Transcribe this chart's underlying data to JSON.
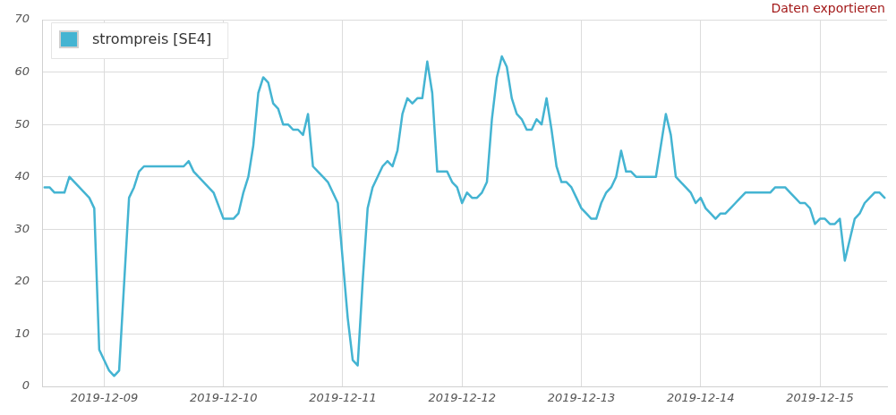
{
  "chart_data": {
    "type": "line",
    "legend": "top left",
    "grid": true,
    "annotations": [
      "Daten exportieren"
    ],
    "xlim": [
      "2019-12-08T11:30",
      "2019-12-15T13:30"
    ],
    "xticks": [
      "2019-12-09",
      "2019-12-10",
      "2019-12-11",
      "2019-12-12",
      "2019-12-13",
      "2019-12-14",
      "2019-12-15"
    ],
    "ylim": [
      0,
      70
    ],
    "yticks": [
      0,
      10,
      20,
      30,
      40,
      50,
      60,
      70
    ],
    "x": [
      "2019-12-08T12:00",
      "2019-12-08T13:00",
      "2019-12-08T14:00",
      "2019-12-08T16:00",
      "2019-12-08T17:00",
      "2019-12-08T21:00",
      "2019-12-08T22:00",
      "2019-12-08T23:00",
      "2019-12-09T01:00",
      "2019-12-09T02:00",
      "2019-12-09T03:00",
      "2019-12-09T05:00",
      "2019-12-09T06:00",
      "2019-12-09T07:00",
      "2019-12-09T08:00",
      "2019-12-09T16:00",
      "2019-12-09T17:00",
      "2019-12-09T18:00",
      "2019-12-09T22:00",
      "2019-12-10T00:00",
      "2019-12-10T02:00",
      "2019-12-10T03:00",
      "2019-12-10T04:00",
      "2019-12-10T05:00",
      "2019-12-10T06:00",
      "2019-12-10T07:00",
      "2019-12-10T08:00",
      "2019-12-10T09:00",
      "2019-12-10T10:00",
      "2019-12-10T11:00",
      "2019-12-10T12:00",
      "2019-12-10T13:00",
      "2019-12-10T14:00",
      "2019-12-10T15:00",
      "2019-12-10T16:00",
      "2019-12-10T17:00",
      "2019-12-10T18:00",
      "2019-12-10T19:00",
      "2019-12-10T20:00",
      "2019-12-10T21:00",
      "2019-12-10T22:00",
      "2019-12-10T23:00",
      "2019-12-11T00:00",
      "2019-12-11T01:00",
      "2019-12-11T02:00",
      "2019-12-11T03:00",
      "2019-12-11T04:00",
      "2019-12-11T05:00",
      "2019-12-11T06:00",
      "2019-12-11T07:00",
      "2019-12-11T08:00",
      "2019-12-11T09:00",
      "2019-12-11T10:00",
      "2019-12-11T11:00",
      "2019-12-11T12:00",
      "2019-12-11T13:00",
      "2019-12-11T14:00",
      "2019-12-11T15:00",
      "2019-12-11T16:00",
      "2019-12-11T17:00",
      "2019-12-11T18:00",
      "2019-12-11T19:00",
      "2019-12-11T21:00",
      "2019-12-11T22:00",
      "2019-12-11T23:00",
      "2019-12-12T00:00",
      "2019-12-12T01:00",
      "2019-12-12T02:00",
      "2019-12-12T03:00",
      "2019-12-12T04:00",
      "2019-12-12T05:00",
      "2019-12-12T06:00",
      "2019-12-12T07:00",
      "2019-12-12T08:00",
      "2019-12-12T09:00",
      "2019-12-12T10:00",
      "2019-12-12T11:00",
      "2019-12-12T12:00",
      "2019-12-12T13:00",
      "2019-12-12T14:00",
      "2019-12-12T15:00",
      "2019-12-12T16:00",
      "2019-12-12T17:00",
      "2019-12-12T18:00",
      "2019-12-12T19:00",
      "2019-12-12T20:00",
      "2019-12-12T21:00",
      "2019-12-12T22:00",
      "2019-12-12T23:00",
      "2019-12-13T00:00",
      "2019-12-13T01:00",
      "2019-12-13T02:00",
      "2019-12-13T03:00",
      "2019-12-13T04:00",
      "2019-12-13T05:00",
      "2019-12-13T06:00",
      "2019-12-13T07:00",
      "2019-12-13T08:00",
      "2019-12-13T09:00",
      "2019-12-13T10:00",
      "2019-12-13T11:00",
      "2019-12-13T15:00",
      "2019-12-13T17:00",
      "2019-12-13T18:00",
      "2019-12-13T19:00",
      "2019-12-13T20:00",
      "2019-12-13T21:00",
      "2019-12-13T22:00",
      "2019-12-13T23:00",
      "2019-12-14T00:00",
      "2019-12-14T01:00",
      "2019-12-14T02:00",
      "2019-12-14T03:00",
      "2019-12-14T04:00",
      "2019-12-14T05:00",
      "2019-12-14T06:00",
      "2019-12-14T07:00",
      "2019-12-14T08:00",
      "2019-12-14T09:00",
      "2019-12-14T14:00",
      "2019-12-14T15:00",
      "2019-12-14T17:00",
      "2019-12-14T18:00",
      "2019-12-14T19:00",
      "2019-12-14T20:00",
      "2019-12-14T21:00",
      "2019-12-14T22:00",
      "2019-12-14T23:00",
      "2019-12-15T00:00",
      "2019-12-15T01:00",
      "2019-12-15T02:00",
      "2019-12-15T03:00",
      "2019-12-15T04:00",
      "2019-12-15T05:00",
      "2019-12-15T06:00",
      "2019-12-15T07:00",
      "2019-12-15T08:00",
      "2019-12-15T09:00",
      "2019-12-15T10:00",
      "2019-12-15T11:00",
      "2019-12-15T12:00",
      "2019-12-15T13:00"
    ],
    "series": [
      {
        "name": "strompreis [SE4]",
        "color": "#44b4d2",
        "values": [
          38,
          38,
          37,
          37,
          40,
          36,
          34,
          7,
          3,
          2,
          3,
          36,
          38,
          41,
          42,
          42,
          43,
          41,
          37,
          32,
          32,
          33,
          37,
          40,
          46,
          56,
          59,
          58,
          54,
          53,
          50,
          50,
          49,
          49,
          48,
          52,
          42,
          41,
          40,
          39,
          37,
          35,
          24,
          13,
          5,
          4,
          20,
          34,
          38,
          40,
          42,
          43,
          42,
          45,
          52,
          55,
          54,
          55,
          55,
          62,
          56,
          41,
          41,
          39,
          38,
          35,
          37,
          36,
          36,
          37,
          39,
          51,
          59,
          63,
          61,
          55,
          52,
          51,
          49,
          49,
          51,
          50,
          55,
          49,
          42,
          39,
          39,
          38,
          36,
          34,
          33,
          32,
          32,
          35,
          37,
          38,
          40,
          45,
          41,
          41,
          40,
          40,
          52,
          48,
          40,
          39,
          38,
          37,
          35,
          36,
          34,
          33,
          32,
          33,
          33,
          34,
          35,
          36,
          37,
          37,
          38,
          38,
          37,
          36,
          35,
          35,
          34,
          31,
          32,
          32,
          31,
          31,
          32,
          24,
          28,
          32,
          33,
          35,
          36,
          37,
          37,
          36
        ]
      }
    ]
  }
}
